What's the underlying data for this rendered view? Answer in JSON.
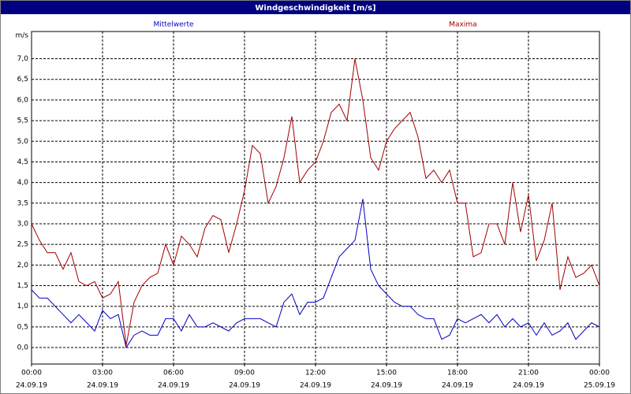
{
  "window_title": "Windgeschwindigkeit [m/s]",
  "chart_data": {
    "type": "line",
    "y_unit": "m/s",
    "x": [
      0,
      20,
      40,
      60,
      80,
      100,
      120,
      140,
      160,
      180,
      200,
      220,
      240,
      260,
      280,
      300,
      320,
      340,
      360,
      380,
      400,
      420,
      440,
      460,
      480,
      500,
      520,
      540,
      560,
      580,
      600,
      620,
      640,
      660,
      680,
      700,
      720,
      740,
      760,
      780,
      800,
      820,
      840,
      860,
      880,
      900,
      920,
      940,
      960,
      980,
      1000,
      1020,
      1040,
      1060,
      1080,
      1100,
      1120,
      1140,
      1160,
      1180,
      1200,
      1220,
      1240,
      1260,
      1280,
      1300,
      1320,
      1340,
      1360,
      1380,
      1400,
      1420,
      1440
    ],
    "series": [
      {
        "name": "Mittelwerte",
        "color": "#0000c0",
        "values": [
          1.4,
          1.2,
          1.2,
          1.0,
          0.8,
          0.6,
          0.8,
          0.6,
          0.4,
          0.9,
          0.7,
          0.8,
          0.0,
          0.3,
          0.4,
          0.3,
          0.3,
          0.7,
          0.7,
          0.4,
          0.8,
          0.5,
          0.5,
          0.6,
          0.5,
          0.4,
          0.6,
          0.7,
          0.7,
          0.7,
          0.6,
          0.5,
          1.1,
          1.3,
          0.8,
          1.1,
          1.1,
          1.2,
          1.7,
          2.2,
          2.4,
          2.6,
          3.6,
          1.9,
          1.5,
          1.3,
          1.1,
          1.0,
          1.0,
          0.8,
          0.7,
          0.7,
          0.2,
          0.3,
          0.7,
          0.6,
          0.7,
          0.8,
          0.6,
          0.8,
          0.5,
          0.7,
          0.5,
          0.6,
          0.3,
          0.6,
          0.3,
          0.4,
          0.6,
          0.2,
          0.4,
          0.6,
          0.5
        ]
      },
      {
        "name": "Maxima",
        "color": "#a00000",
        "values": [
          3.0,
          2.6,
          2.3,
          2.3,
          1.9,
          2.3,
          1.6,
          1.5,
          1.6,
          1.2,
          1.3,
          1.6,
          0.05,
          1.1,
          1.5,
          1.7,
          1.8,
          2.5,
          2.0,
          2.7,
          2.5,
          2.2,
          2.9,
          3.2,
          3.1,
          2.3,
          3.0,
          3.8,
          4.9,
          4.7,
          3.5,
          3.9,
          4.6,
          5.6,
          4.0,
          4.3,
          4.5,
          5.0,
          5.7,
          5.9,
          5.5,
          7.0,
          6.0,
          4.6,
          4.3,
          5.0,
          5.3,
          5.5,
          5.7,
          5.1,
          4.1,
          4.3,
          4.0,
          4.3,
          3.5,
          3.5,
          2.2,
          2.3,
          3.0,
          3.0,
          2.5,
          4.0,
          2.8,
          3.7,
          2.1,
          2.6,
          3.5,
          1.4,
          2.2,
          1.7,
          1.8,
          2.0,
          1.5
        ]
      }
    ],
    "xlim": [
      0,
      1440
    ],
    "xticks": [
      {
        "value": 0,
        "label": "00:00",
        "date": "24.09.19"
      },
      {
        "value": 180,
        "label": "03:00",
        "date": "24.09.19"
      },
      {
        "value": 360,
        "label": "06:00",
        "date": "24.09.19"
      },
      {
        "value": 540,
        "label": "09:00",
        "date": "24.09.19"
      },
      {
        "value": 720,
        "label": "12:00",
        "date": "24.09.19"
      },
      {
        "value": 900,
        "label": "15:00",
        "date": "24.09.19"
      },
      {
        "value": 1080,
        "label": "18:00",
        "date": "24.09.19"
      },
      {
        "value": 1260,
        "label": "21:00",
        "date": "24.09.19"
      },
      {
        "value": 1440,
        "label": "00:00",
        "date": "25.09.19"
      }
    ],
    "ylim": [
      -0.4,
      7.66
    ],
    "yticks": [
      {
        "value": 0,
        "label": "0,0"
      },
      {
        "value": 0.5,
        "label": "0,5"
      },
      {
        "value": 1,
        "label": "1,0"
      },
      {
        "value": 1.5,
        "label": "1,5"
      },
      {
        "value": 2,
        "label": "2,0"
      },
      {
        "value": 2.5,
        "label": "2,5"
      },
      {
        "value": 3,
        "label": "3,0"
      },
      {
        "value": 3.5,
        "label": "3,5"
      },
      {
        "value": 4,
        "label": "4,0"
      },
      {
        "value": 4.5,
        "label": "4,5"
      },
      {
        "value": 5,
        "label": "5,0"
      },
      {
        "value": 5.5,
        "label": "5,5"
      },
      {
        "value": 6,
        "label": "6,0"
      },
      {
        "value": 6.5,
        "label": "6,5"
      },
      {
        "value": 7,
        "label": "7,0"
      }
    ],
    "grid": true
  }
}
